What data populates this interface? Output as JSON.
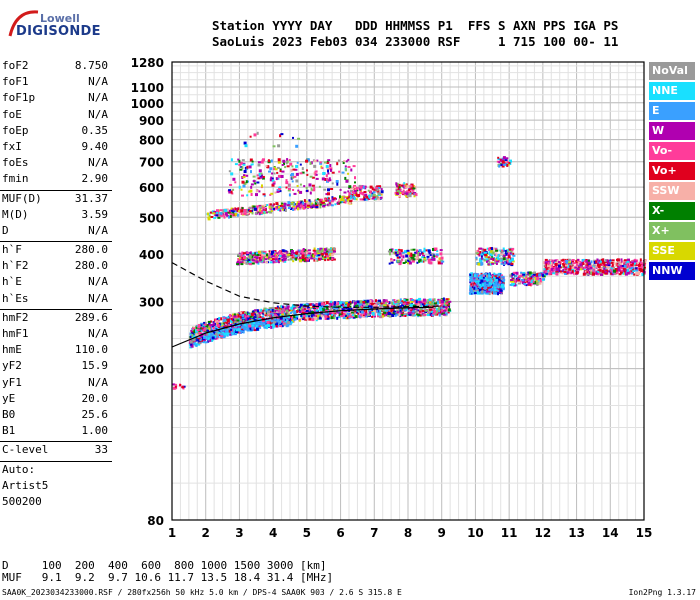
{
  "logo": {
    "line1": "Lowell",
    "line2": "DIGISONDE"
  },
  "header": {
    "labels": "Station YYYY DAY   DDD HHMMSS P1  FFS S AXN PPS IGA PS",
    "values": "SaoLuis 2023 Feb03 034 233000 RSF     1 715 100 00- 11"
  },
  "params": [
    {
      "label": "foF2",
      "value": "8.750"
    },
    {
      "label": "foF1",
      "value": "N/A"
    },
    {
      "label": "foF1p",
      "value": "N/A"
    },
    {
      "label": "foE",
      "value": "N/A"
    },
    {
      "label": "foEp",
      "value": "0.35"
    },
    {
      "label": "fxI",
      "value": "9.40"
    },
    {
      "label": "foEs",
      "value": "N/A"
    },
    {
      "label": "fmin",
      "value": "2.90"
    },
    {
      "sep": true
    },
    {
      "label": "MUF(D)",
      "value": "31.37"
    },
    {
      "label": "M(D)",
      "value": "3.59"
    },
    {
      "label": "D",
      "value": "N/A"
    },
    {
      "sep": true
    },
    {
      "label": "h`F",
      "value": "280.0"
    },
    {
      "label": "h`F2",
      "value": "280.0"
    },
    {
      "label": "h`E",
      "value": "N/A"
    },
    {
      "label": "h`Es",
      "value": "N/A"
    },
    {
      "sep": true
    },
    {
      "label": "hmF2",
      "value": "289.6"
    },
    {
      "label": "hmF1",
      "value": "N/A"
    },
    {
      "label": "hmE",
      "value": "110.0"
    },
    {
      "label": "yF2",
      "value": "15.9"
    },
    {
      "label": "yF1",
      "value": "N/A"
    },
    {
      "label": "yE",
      "value": "20.0"
    },
    {
      "label": "B0",
      "value": "25.6"
    },
    {
      "label": "B1",
      "value": "1.00"
    },
    {
      "sep": true
    },
    {
      "label": "C-level",
      "value": "33"
    },
    {
      "sep": true
    }
  ],
  "auto": [
    "Auto:",
    "Artist5",
    "500200"
  ],
  "legend": [
    {
      "label": "NoVal",
      "color": "#9a9a9a"
    },
    {
      "label": "NNE",
      "color": "#19e0ff"
    },
    {
      "label": "E",
      "color": "#3aa0ff"
    },
    {
      "label": "W",
      "color": "#b000b0"
    },
    {
      "label": "Vo-",
      "color": "#ff3c9a"
    },
    {
      "label": "Vo+",
      "color": "#e0001e"
    },
    {
      "label": "SSW",
      "color": "#f7b0a8"
    },
    {
      "label": "X-",
      "color": "#008000"
    },
    {
      "label": "X+",
      "color": "#80c060"
    },
    {
      "label": "SSE",
      "color": "#d8d800"
    },
    {
      "label": "NNW",
      "color": "#0000d0"
    }
  ],
  "distance": {
    "row1": "D     100  200  400  600  800 1000 1500 3000 [km]",
    "row2": "MUF   9.1  9.2  9.7 10.6 11.7 13.5 18.4 31.4 [MHz]"
  },
  "footer": "SAA0K_2023034233000.RSF / 280fx256h 50 kHz 5.0 km / DPS-4 SAA0K 903 / 2.6 S 315.8 E",
  "version": "Ion2Png 1.3.17",
  "chart_data": {
    "type": "scatter",
    "x_ticks": [
      1,
      2,
      3,
      4,
      5,
      6,
      7,
      8,
      9,
      10,
      11,
      12,
      13,
      14,
      15
    ],
    "y_ticks": [
      80,
      200,
      300,
      400,
      500,
      600,
      700,
      800,
      900,
      1000,
      1100,
      1280
    ],
    "xlim": [
      1,
      15
    ],
    "ylim": [
      80,
      1280
    ],
    "y_scale": "log",
    "grid": true,
    "profile_curve": {
      "x": [
        1.0,
        2.0,
        3.0,
        4.0,
        5.0,
        6.0,
        7.0,
        8.0,
        8.75
      ],
      "y": [
        228,
        248,
        262,
        272,
        279,
        284,
        287,
        289,
        290
      ]
    },
    "trace_curve": {
      "x": [
        1.0,
        2.0,
        3.0,
        4.0,
        5.0,
        6.0,
        7.0,
        8.0,
        9.0
      ],
      "y": [
        380,
        340,
        310,
        298,
        292,
        290,
        290,
        291,
        292
      ]
    }
  }
}
